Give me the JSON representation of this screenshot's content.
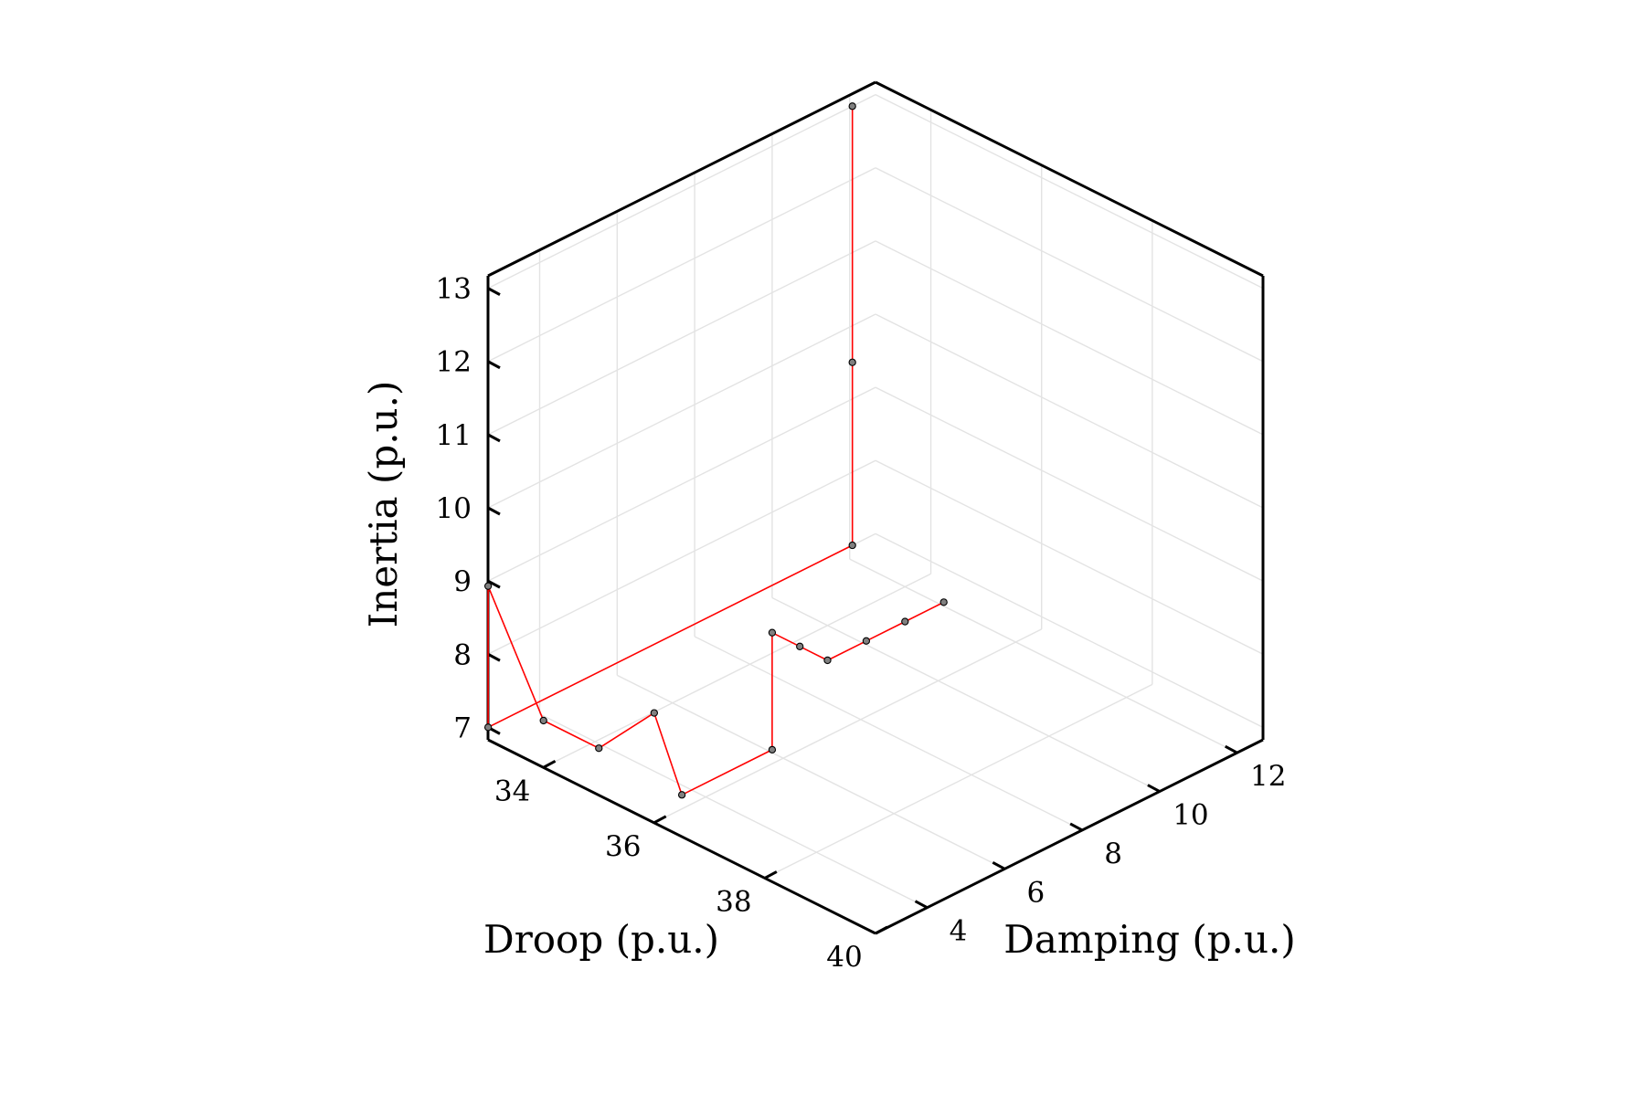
{
  "chart_data": {
    "type": "3d-line-scatter",
    "axes": {
      "x": {
        "label": "Droop (p.u.)",
        "range": [
          33,
          40
        ],
        "ticks": [
          34,
          36,
          38,
          40
        ]
      },
      "y": {
        "label": "Damping (p.u.)",
        "range": [
          2.667,
          12.667
        ],
        "ticks": [
          4,
          6,
          8,
          10,
          12
        ]
      },
      "z": {
        "label": "Inertia (p.u.)",
        "range": [
          6.83,
          13.17
        ],
        "ticks": [
          7,
          8,
          9,
          10,
          11,
          12,
          13
        ]
      }
    },
    "grid": true,
    "legend": "none",
    "colors": {
      "line": "#ff0000",
      "marker_fill": "#808080",
      "marker_stroke": "#000000",
      "grid": "#e3e3e3",
      "axis": "#000000"
    },
    "series": [
      {
        "name": "",
        "points": [
          [
            33.0,
            12.07,
            9.5
          ],
          [
            33.0,
            12.07,
            13.0
          ],
          [
            33.0,
            12.07,
            7.0
          ],
          [
            33.0,
            2.67,
            7.0
          ],
          [
            33.0,
            2.67,
            8.93
          ],
          [
            34.0,
            2.67,
            7.47
          ],
          [
            35.0,
            2.67,
            7.47
          ],
          [
            36.0,
            2.67,
            8.33
          ],
          [
            36.5,
            2.67,
            7.4
          ],
          [
            36.5,
            5.0,
            7.4
          ],
          [
            36.5,
            5.0,
            9.0
          ],
          [
            37.0,
            5.0,
            9.0
          ],
          [
            37.5,
            5.0,
            9.0
          ],
          [
            37.5,
            6.0,
            9.0
          ],
          [
            37.5,
            7.0,
            9.0
          ],
          [
            37.5,
            8.0,
            9.0
          ]
        ]
      }
    ]
  }
}
